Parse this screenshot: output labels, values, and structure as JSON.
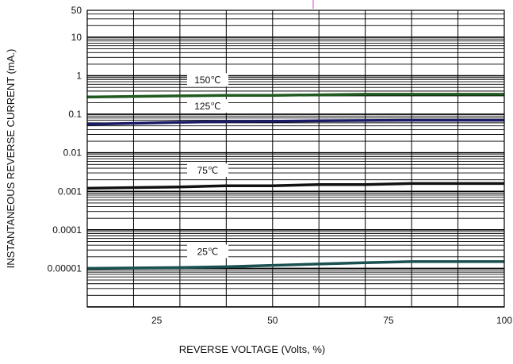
{
  "chart_data": {
    "type": "line",
    "title": "",
    "xlabel": "REVERSE VOLTAGE (Volts, %)",
    "ylabel": "INSTANTANEOUS REVERSE CURRENT (mA.)",
    "x_scale": "linear",
    "y_scale": "log",
    "xlim": [
      10,
      100
    ],
    "ylim": [
      1e-06,
      50
    ],
    "x_ticks": [
      25,
      50,
      75,
      100
    ],
    "x_tick_labels": [
      "25",
      "50",
      "75",
      "100"
    ],
    "y_ticks": [
      1e-05,
      0.0001,
      0.001,
      0.01,
      0.1,
      1,
      10,
      50
    ],
    "y_tick_labels": [
      "0.00001",
      "0.0001",
      "0.001",
      "0.01",
      "0.1",
      "1",
      "10",
      "50"
    ],
    "grid": true,
    "series": [
      {
        "name": "150℃",
        "color": "#1f5a1f",
        "x": [
          10,
          30,
          40,
          50,
          60,
          70,
          80,
          90,
          100
        ],
        "y": [
          0.28,
          0.3,
          0.31,
          0.31,
          0.32,
          0.33,
          0.33,
          0.33,
          0.33
        ]
      },
      {
        "name": "125℃",
        "color": "#1a1a66",
        "x": [
          10,
          30,
          40,
          50,
          60,
          70,
          80,
          90,
          100
        ],
        "y": [
          0.055,
          0.062,
          0.065,
          0.066,
          0.068,
          0.069,
          0.07,
          0.07,
          0.07
        ]
      },
      {
        "name": "75℃",
        "color": "#111111",
        "x": [
          10,
          30,
          40,
          50,
          60,
          70,
          80,
          90,
          100
        ],
        "y": [
          0.0012,
          0.0013,
          0.0014,
          0.0014,
          0.0015,
          0.0015,
          0.0016,
          0.0016,
          0.0016
        ]
      },
      {
        "name": "25℃",
        "color": "#1a5050",
        "x": [
          10,
          30,
          40,
          50,
          60,
          70,
          80,
          90,
          100
        ],
        "y": [
          1e-05,
          1.05e-05,
          1.1e-05,
          1.2e-05,
          1.3e-05,
          1.4e-05,
          1.5e-05,
          1.5e-05,
          1.5e-05
        ]
      }
    ],
    "annotations": [
      "150℃",
      "125℃",
      "75℃",
      "25℃"
    ],
    "accent_color": "#d83fd8"
  }
}
